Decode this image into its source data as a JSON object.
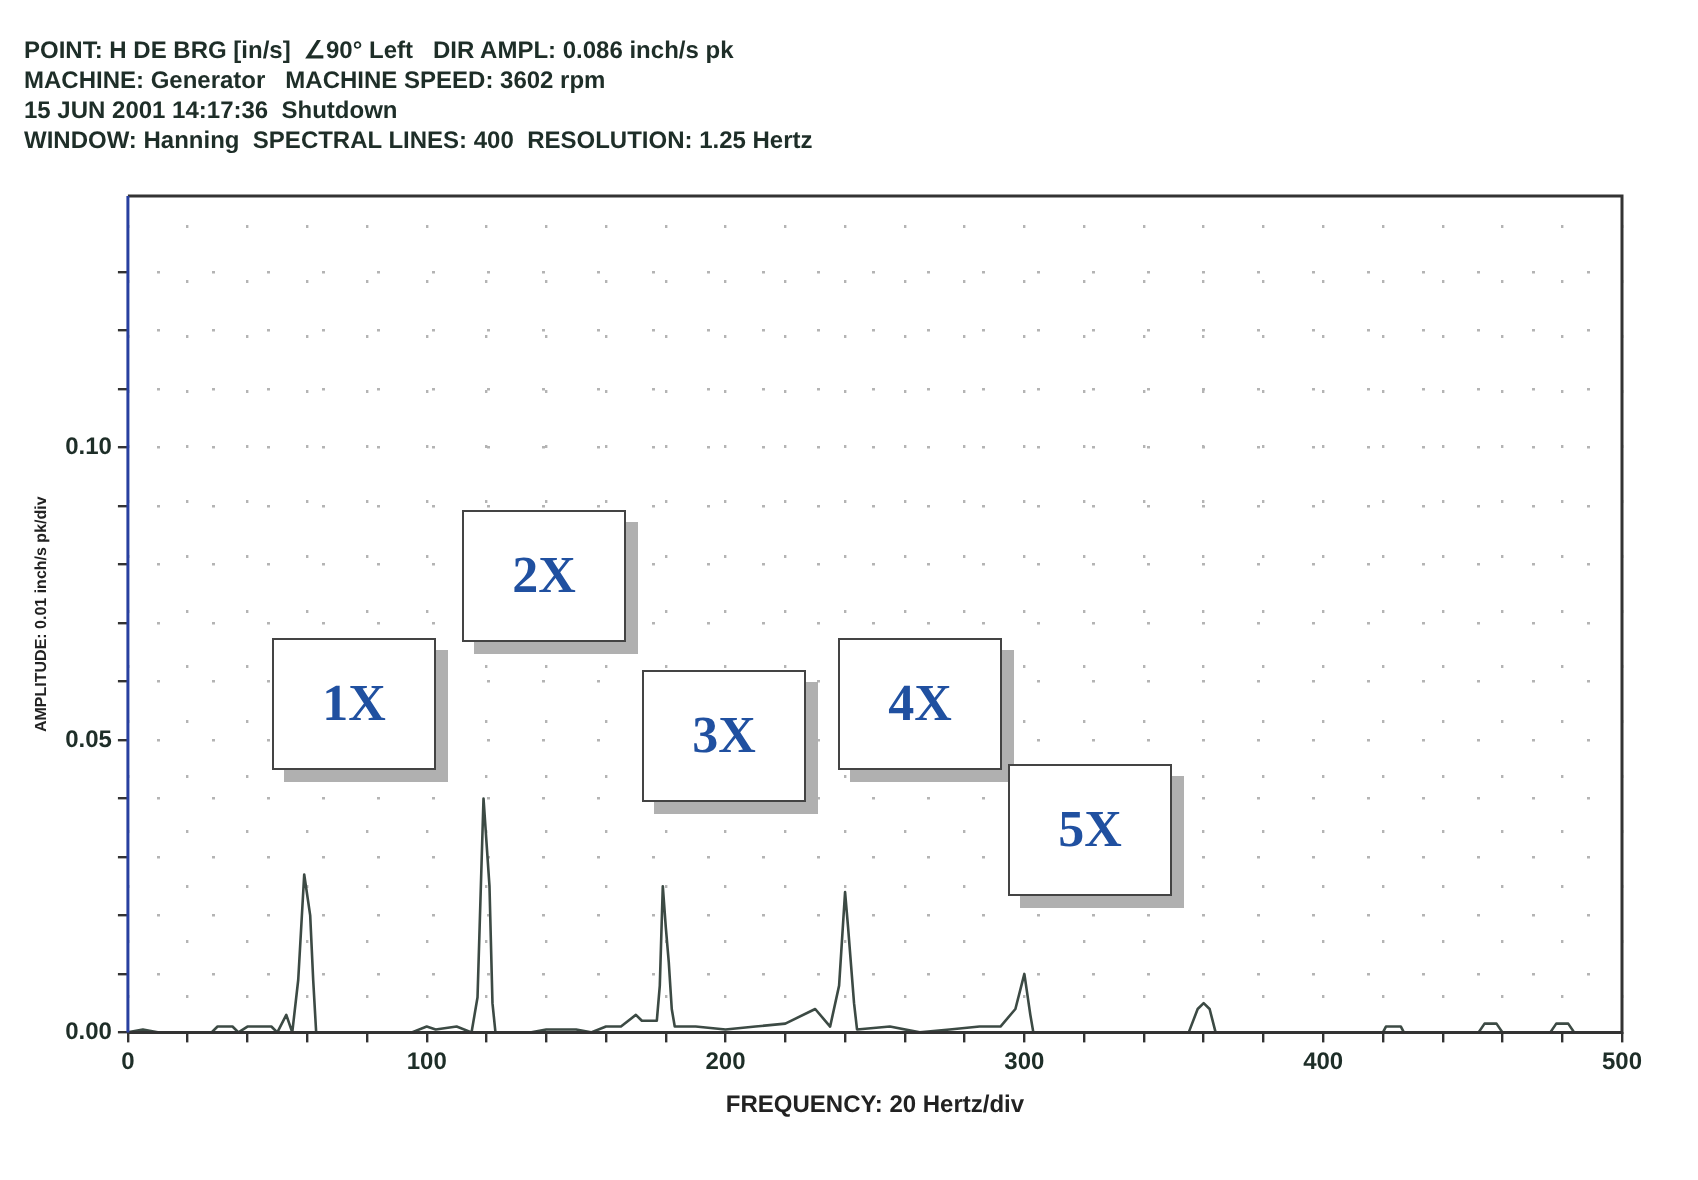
{
  "chart_data": {
    "type": "line",
    "title": "POINT: H DE BRG [in/s]  ∠90° Left   DIR AMPL: 0.086 inch/s pk",
    "subtitle": "MACHINE: Generator   MACHINE SPEED: 3602 rpm\n15 JUN 2001 14:17:36  Shutdown\nWINDOW: Hanning  SPECTRAL LINES: 400  RESOLUTION: 1.25 Hertz",
    "xlabel": "FREQUENCY: 20 Hertz/div",
    "ylabel": "AMPLITUDE: 0.01 inch/s pk/div",
    "x": [
      0,
      5,
      10,
      28,
      30,
      35,
      37,
      40,
      48,
      50,
      53,
      55,
      57,
      59,
      61,
      62,
      63,
      80,
      95,
      100,
      103,
      110,
      115,
      117,
      119,
      121,
      122,
      123,
      135,
      140,
      150,
      155,
      160,
      165,
      170,
      172,
      177,
      178,
      179,
      180,
      181,
      182,
      183,
      190,
      200,
      210,
      220,
      230,
      235,
      238,
      240,
      241,
      243,
      244,
      255,
      265,
      275,
      285,
      292,
      297,
      300,
      302,
      303,
      355,
      358,
      360,
      362,
      364,
      420,
      421,
      426,
      427,
      452,
      454,
      458,
      460,
      476,
      478,
      482,
      484,
      500
    ],
    "series": [
      {
        "color": "#3c4a44",
        "values": [
          0,
          0.0005,
          0,
          0,
          0.001,
          0.001,
          0,
          0.001,
          0.001,
          0,
          0.003,
          0,
          0.009,
          0.027,
          0.02,
          0.009,
          0,
          0,
          0,
          0.001,
          0.0005,
          0.001,
          0,
          0.006,
          0.04,
          0.025,
          0.005,
          0,
          0,
          0.0005,
          0.0005,
          0,
          0.001,
          0.001,
          0.003,
          0.002,
          0.002,
          0.008,
          0.025,
          0.018,
          0.012,
          0.004,
          0.001,
          0.001,
          0.0005,
          0.001,
          0.0015,
          0.004,
          0.001,
          0.008,
          0.024,
          0.018,
          0.005,
          0.0005,
          0.001,
          0,
          0.0005,
          0.001,
          0.001,
          0.004,
          0.01,
          0.003,
          0,
          0,
          0.004,
          0.005,
          0.004,
          0,
          0,
          0.001,
          0.001,
          0,
          0,
          0.0015,
          0.0015,
          0,
          0,
          0.0015,
          0.0015,
          0,
          0
        ]
      }
    ],
    "xlim": [
      0,
      500
    ],
    "ylim": [
      0,
      0.143
    ],
    "xticks": [
      0,
      {
        "value": 20,
        "label": null
      },
      {
        "value": 40,
        "label": null
      },
      {
        "value": 60,
        "label": null
      },
      {
        "value": 80,
        "label": null
      },
      100,
      {
        "value": 120,
        "label": null
      },
      {
        "value": 140,
        "label": null
      },
      {
        "value": 160,
        "label": null
      },
      {
        "value": 180,
        "label": null
      },
      200,
      {
        "value": 220,
        "label": null
      },
      {
        "value": 240,
        "label": null
      },
      {
        "value": 260,
        "label": null
      },
      {
        "value": 280,
        "label": null
      },
      300,
      {
        "value": 320,
        "label": null
      },
      {
        "value": 340,
        "label": null
      },
      {
        "value": 360,
        "label": null
      },
      {
        "value": 380,
        "label": null
      },
      400,
      {
        "value": 420,
        "label": null
      },
      {
        "value": 440,
        "label": null
      },
      {
        "value": 460,
        "label": null
      },
      {
        "value": 480,
        "label": null
      },
      500
    ],
    "yticks": [
      {
        "value": 0,
        "label": "0.00"
      },
      {
        "value": 0.01,
        "label": null
      },
      {
        "value": 0.02,
        "label": null
      },
      {
        "value": 0.03,
        "label": null
      },
      {
        "value": 0.04,
        "label": null
      },
      {
        "value": 0.05,
        "label": "0.05"
      },
      {
        "value": 0.06,
        "label": null
      },
      {
        "value": 0.07,
        "label": null
      },
      {
        "value": 0.08,
        "label": null
      },
      {
        "value": 0.09,
        "label": null
      },
      {
        "value": 0.1,
        "label": "0.10"
      },
      {
        "value": 0.11,
        "label": null
      },
      {
        "value": 0.12,
        "label": null
      },
      {
        "value": 0.13,
        "label": null
      }
    ],
    "grid": true,
    "legend": false,
    "marker": "none",
    "line_style": "solid",
    "annotations": [
      "1X",
      "2X",
      "3X",
      "4X",
      "5X"
    ]
  }
}
